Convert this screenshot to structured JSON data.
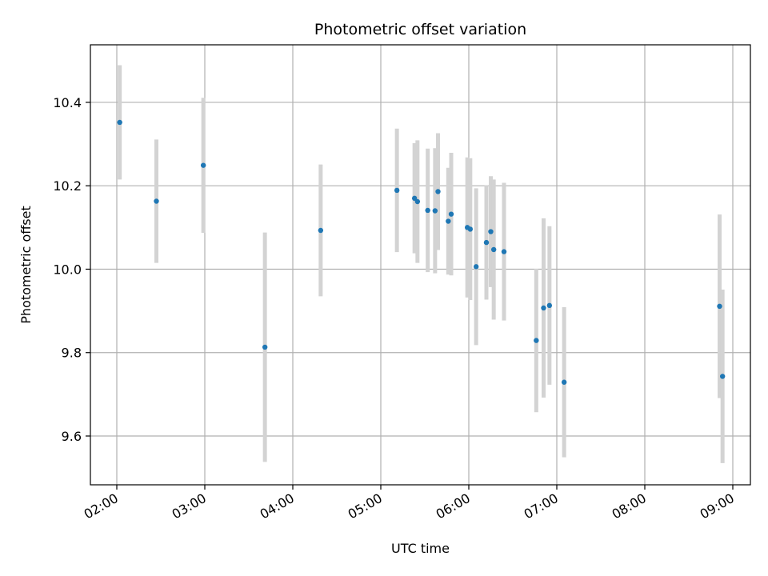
{
  "chart_data": {
    "type": "scatter",
    "title": "Photometric offset variation",
    "xlabel": "UTC time",
    "ylabel": "Photometric offset",
    "xlim": [
      "01:42",
      "09:12"
    ],
    "ylim": [
      9.483,
      10.538
    ],
    "x_ticks": [
      "02:00",
      "03:00",
      "04:00",
      "05:00",
      "06:00",
      "07:00",
      "08:00",
      "09:00"
    ],
    "y_ticks": [
      9.6,
      9.8,
      10.0,
      10.2,
      10.4
    ],
    "y_tick_labels": [
      "9.6",
      "9.8",
      "10.0",
      "10.2",
      "10.4"
    ],
    "grid": true,
    "colors": {
      "marker": "#1f77b4",
      "error_bar": "#d3d3d3",
      "grid": "#b0b0b0",
      "axes": "#000000"
    },
    "series": [
      {
        "points": [
          {
            "time": "02:02",
            "y": 10.352,
            "yerr": 0.137
          },
          {
            "time": "02:27",
            "y": 10.163,
            "yerr": 0.148
          },
          {
            "time": "02:59",
            "y": 10.249,
            "yerr": 0.162
          },
          {
            "time": "03:41",
            "y": 9.813,
            "yerr": 0.275
          },
          {
            "time": "04:19",
            "y": 10.093,
            "yerr": 0.158
          },
          {
            "time": "05:11",
            "y": 10.189,
            "yerr": 0.148
          },
          {
            "time": "05:23",
            "y": 10.17,
            "yerr": 0.132
          },
          {
            "time": "05:25",
            "y": 10.162,
            "yerr": 0.147
          },
          {
            "time": "05:32",
            "y": 10.141,
            "yerr": 0.148
          },
          {
            "time": "05:37",
            "y": 10.14,
            "yerr": 0.15
          },
          {
            "time": "05:39",
            "y": 10.186,
            "yerr": 0.14
          },
          {
            "time": "05:46",
            "y": 10.115,
            "yerr": 0.128
          },
          {
            "time": "05:48",
            "y": 10.132,
            "yerr": 0.147
          },
          {
            "time": "05:59",
            "y": 10.1,
            "yerr": 0.168
          },
          {
            "time": "06:01",
            "y": 10.096,
            "yerr": 0.17
          },
          {
            "time": "06:05",
            "y": 10.006,
            "yerr": 0.188
          },
          {
            "time": "06:12",
            "y": 10.064,
            "yerr": 0.137
          },
          {
            "time": "06:15",
            "y": 10.09,
            "yerr": 0.133
          },
          {
            "time": "06:17",
            "y": 10.047,
            "yerr": 0.168
          },
          {
            "time": "06:24",
            "y": 10.042,
            "yerr": 0.165
          },
          {
            "time": "06:46",
            "y": 9.829,
            "yerr": 0.172
          },
          {
            "time": "06:51",
            "y": 9.907,
            "yerr": 0.215
          },
          {
            "time": "06:55",
            "y": 9.913,
            "yerr": 0.19
          },
          {
            "time": "07:05",
            "y": 9.729,
            "yerr": 0.18
          },
          {
            "time": "08:51",
            "y": 9.911,
            "yerr": 0.22
          },
          {
            "time": "08:53",
            "y": 9.743,
            "yerr": 0.208
          }
        ]
      }
    ]
  }
}
